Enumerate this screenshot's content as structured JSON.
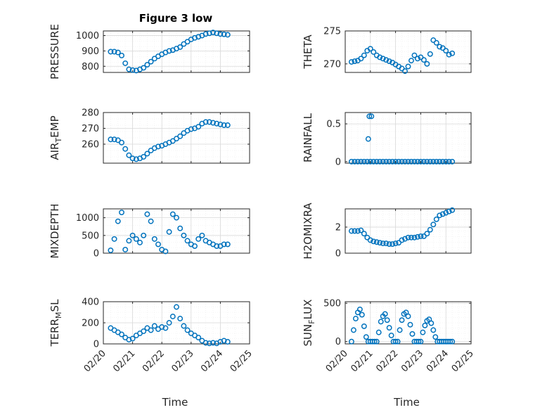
{
  "figure_title": "Figure 3 low",
  "marker_color": "#0072BD",
  "chart_data": [
    {
      "type": "scatter",
      "ylabel": "PRESSURE",
      "ylabel_sub": "",
      "xlim": [
        "02/20",
        "02/25"
      ],
      "ylim": [
        760,
        1030
      ],
      "yticks": [
        800,
        900,
        1000
      ],
      "xticks": [],
      "xlabel": "",
      "grid": true,
      "x": [
        "02/20 06:00",
        "02/20 09:00",
        "02/20 12:00",
        "02/20 15:00",
        "02/20 18:00",
        "02/20 21:00",
        "02/21 00:00",
        "02/21 03:00",
        "02/21 06:00",
        "02/21 09:00",
        "02/21 12:00",
        "02/21 15:00",
        "02/21 18:00",
        "02/21 21:00",
        "02/22 00:00",
        "02/22 03:00",
        "02/22 06:00",
        "02/22 09:00",
        "02/22 12:00",
        "02/22 15:00",
        "02/22 18:00",
        "02/22 21:00",
        "02/23 00:00",
        "02/23 03:00",
        "02/23 06:00",
        "02/23 09:00",
        "02/23 12:00",
        "02/23 15:00",
        "02/23 18:00",
        "02/23 21:00",
        "02/24 00:00",
        "02/24 03:00",
        "02/24 06:00"
      ],
      "y": [
        895,
        895,
        890,
        870,
        820,
        780,
        775,
        772,
        780,
        790,
        810,
        830,
        850,
        865,
        878,
        890,
        900,
        905,
        915,
        925,
        945,
        960,
        975,
        985,
        992,
        1000,
        1010,
        1015,
        1020,
        1015,
        1010,
        1008,
        1005
      ]
    },
    {
      "type": "scatter",
      "ylabel": "THETA",
      "ylabel_sub": "",
      "xlim": [
        "02/20",
        "02/25"
      ],
      "ylim": [
        268.7,
        275
      ],
      "yticks": [
        270,
        275
      ],
      "xticks": [],
      "xlabel": "",
      "grid": true,
      "x": [
        "02/20 06:00",
        "02/20 09:00",
        "02/20 12:00",
        "02/20 15:00",
        "02/20 18:00",
        "02/20 21:00",
        "02/21 00:00",
        "02/21 03:00",
        "02/21 06:00",
        "02/21 09:00",
        "02/21 12:00",
        "02/21 15:00",
        "02/21 18:00",
        "02/21 21:00",
        "02/22 00:00",
        "02/22 03:00",
        "02/22 06:00",
        "02/22 09:00",
        "02/22 12:00",
        "02/22 15:00",
        "02/22 18:00",
        "02/22 21:00",
        "02/23 00:00",
        "02/23 03:00",
        "02/23 06:00",
        "02/23 09:00",
        "02/23 12:00",
        "02/23 15:00",
        "02/23 18:00",
        "02/23 21:00",
        "02/24 00:00",
        "02/24 03:00",
        "02/24 06:00"
      ],
      "y": [
        270.3,
        270.4,
        270.5,
        270.8,
        271.3,
        272.0,
        272.3,
        271.8,
        271.3,
        271.0,
        270.8,
        270.6,
        270.4,
        270.2,
        269.9,
        269.6,
        269.3,
        268.9,
        269.6,
        270.5,
        271.3,
        270.8,
        271.0,
        270.6,
        270.0,
        271.5,
        273.6,
        273.2,
        272.6,
        272.4,
        272.0,
        271.4,
        271.6
      ]
    },
    {
      "type": "scatter",
      "ylabel": "AIR",
      "ylabel_sub": "T",
      "ylabel_rest": "EMP",
      "xlim": [
        "02/20",
        "02/25"
      ],
      "ylim": [
        248,
        280
      ],
      "yticks": [
        260,
        270,
        280
      ],
      "xticks": [],
      "xlabel": "",
      "grid": true,
      "x": [
        "02/20 06:00",
        "02/20 09:00",
        "02/20 12:00",
        "02/20 15:00",
        "02/20 18:00",
        "02/20 21:00",
        "02/21 00:00",
        "02/21 03:00",
        "02/21 06:00",
        "02/21 09:00",
        "02/21 12:00",
        "02/21 15:00",
        "02/21 18:00",
        "02/21 21:00",
        "02/22 00:00",
        "02/22 03:00",
        "02/22 06:00",
        "02/22 09:00",
        "02/22 12:00",
        "02/22 15:00",
        "02/22 18:00",
        "02/22 21:00",
        "02/23 00:00",
        "02/23 03:00",
        "02/23 06:00",
        "02/23 09:00",
        "02/23 12:00",
        "02/23 15:00",
        "02/23 18:00",
        "02/23 21:00",
        "02/24 00:00",
        "02/24 03:00",
        "02/24 06:00"
      ],
      "y": [
        263,
        263,
        262.5,
        261,
        257,
        253,
        251,
        250.5,
        251,
        252,
        254,
        256,
        257.5,
        258.5,
        259,
        260,
        261,
        262,
        263.5,
        265,
        267,
        268.5,
        269.5,
        270,
        271,
        273,
        274,
        274,
        273.5,
        273,
        272.5,
        272,
        272
      ]
    },
    {
      "type": "scatter",
      "ylabel": "RAINFALL",
      "ylabel_sub": "",
      "xlim": [
        "02/20",
        "02/25"
      ],
      "ylim": [
        -0.02,
        0.65
      ],
      "yticks": [
        0,
        0.5
      ],
      "ytick_labels": [
        "0",
        "0.5"
      ],
      "xticks": [],
      "xlabel": "",
      "grid": true,
      "x": [
        "02/20 06:00",
        "02/20 09:00",
        "02/20 12:00",
        "02/20 15:00",
        "02/20 18:00",
        "02/20 21:00",
        "02/21 00:00",
        "02/21 03:00",
        "02/21 06:00",
        "02/21 09:00",
        "02/21 12:00",
        "02/21 15:00",
        "02/21 18:00",
        "02/21 21:00",
        "02/22 00:00",
        "02/22 03:00",
        "02/22 06:00",
        "02/22 09:00",
        "02/22 12:00",
        "02/22 15:00",
        "02/22 18:00",
        "02/22 21:00",
        "02/23 00:00",
        "02/23 03:00",
        "02/23 06:00",
        "02/23 09:00",
        "02/23 12:00",
        "02/23 15:00",
        "02/23 18:00",
        "02/23 21:00",
        "02/24 00:00",
        "02/24 03:00",
        "02/24 06:00",
        "02/20 22:00",
        "02/20 23:00",
        "02/21 01:00"
      ],
      "y": [
        0,
        0,
        0,
        0,
        0,
        0,
        0,
        0,
        0,
        0,
        0,
        0,
        0,
        0,
        0,
        0,
        0,
        0,
        0,
        0,
        0,
        0,
        0,
        0,
        0,
        0,
        0,
        0,
        0,
        0,
        0,
        0,
        0,
        0.3,
        0.6,
        0.6
      ]
    },
    {
      "type": "scatter",
      "ylabel": "MIXDEPTH",
      "ylabel_sub": "",
      "xlim": [
        "02/20",
        "02/25"
      ],
      "ylim": [
        0,
        1250
      ],
      "yticks": [
        0,
        500,
        1000
      ],
      "xticks": [],
      "xlabel": "",
      "grid": true,
      "x": [
        "02/20 06:00",
        "02/20 09:00",
        "02/20 12:00",
        "02/20 15:00",
        "02/20 18:00",
        "02/20 21:00",
        "02/21 00:00",
        "02/21 03:00",
        "02/21 06:00",
        "02/21 09:00",
        "02/21 12:00",
        "02/21 15:00",
        "02/21 18:00",
        "02/21 21:00",
        "02/22 00:00",
        "02/22 03:00",
        "02/22 06:00",
        "02/22 09:00",
        "02/22 12:00",
        "02/22 15:00",
        "02/22 18:00",
        "02/22 21:00",
        "02/23 00:00",
        "02/23 03:00",
        "02/23 06:00",
        "02/23 09:00",
        "02/23 12:00",
        "02/23 15:00",
        "02/23 18:00",
        "02/23 21:00",
        "02/24 00:00",
        "02/24 03:00",
        "02/24 06:00"
      ],
      "y": [
        80,
        400,
        900,
        1150,
        100,
        350,
        500,
        400,
        300,
        500,
        1100,
        900,
        400,
        250,
        100,
        50,
        600,
        1100,
        1000,
        700,
        500,
        350,
        250,
        200,
        400,
        500,
        350,
        300,
        250,
        200,
        200,
        250,
        250
      ]
    },
    {
      "type": "scatter",
      "ylabel": "H2OMIXRA",
      "ylabel_sub": "",
      "xlim": [
        "02/20",
        "02/25"
      ],
      "ylim": [
        0,
        3.4
      ],
      "yticks": [
        0,
        2
      ],
      "xticks": [],
      "xlabel": "",
      "grid": true,
      "x": [
        "02/20 06:00",
        "02/20 09:00",
        "02/20 12:00",
        "02/20 15:00",
        "02/20 18:00",
        "02/20 21:00",
        "02/21 00:00",
        "02/21 03:00",
        "02/21 06:00",
        "02/21 09:00",
        "02/21 12:00",
        "02/21 15:00",
        "02/21 18:00",
        "02/21 21:00",
        "02/22 00:00",
        "02/22 03:00",
        "02/22 06:00",
        "02/22 09:00",
        "02/22 12:00",
        "02/22 15:00",
        "02/22 18:00",
        "02/22 21:00",
        "02/23 00:00",
        "02/23 03:00",
        "02/23 06:00",
        "02/23 09:00",
        "02/23 12:00",
        "02/23 15:00",
        "02/23 18:00",
        "02/23 21:00",
        "02/24 00:00",
        "02/24 03:00",
        "02/24 06:00"
      ],
      "y": [
        1.7,
        1.7,
        1.7,
        1.75,
        1.5,
        1.2,
        1.0,
        0.9,
        0.85,
        0.8,
        0.75,
        0.75,
        0.7,
        0.7,
        0.75,
        0.8,
        1.0,
        1.1,
        1.2,
        1.2,
        1.2,
        1.25,
        1.3,
        1.3,
        1.5,
        1.8,
        2.2,
        2.6,
        2.9,
        3.0,
        3.1,
        3.2,
        3.3
      ]
    },
    {
      "type": "scatter",
      "ylabel": "TERR",
      "ylabel_sub": "M",
      "ylabel_rest": "SL",
      "xlim": [
        "02/20",
        "02/25"
      ],
      "ylim": [
        0,
        400
      ],
      "yticks": [
        0,
        200,
        400
      ],
      "xticks": [
        "02/20",
        "02/21",
        "02/22",
        "02/23",
        "02/24",
        "02/25"
      ],
      "xlabel": "Time",
      "grid": true,
      "x": [
        "02/20 06:00",
        "02/20 09:00",
        "02/20 12:00",
        "02/20 15:00",
        "02/20 18:00",
        "02/20 21:00",
        "02/21 00:00",
        "02/21 03:00",
        "02/21 06:00",
        "02/21 09:00",
        "02/21 12:00",
        "02/21 15:00",
        "02/21 18:00",
        "02/21 21:00",
        "02/22 00:00",
        "02/22 03:00",
        "02/22 06:00",
        "02/22 09:00",
        "02/22 12:00",
        "02/22 15:00",
        "02/22 18:00",
        "02/22 21:00",
        "02/23 00:00",
        "02/23 03:00",
        "02/23 06:00",
        "02/23 09:00",
        "02/23 12:00",
        "02/23 15:00",
        "02/23 18:00",
        "02/23 21:00",
        "02/24 00:00",
        "02/24 03:00",
        "02/24 06:00"
      ],
      "y": [
        150,
        130,
        110,
        90,
        60,
        40,
        50,
        80,
        100,
        120,
        150,
        130,
        170,
        140,
        160,
        150,
        200,
        260,
        350,
        240,
        170,
        130,
        100,
        80,
        60,
        30,
        10,
        5,
        10,
        5,
        20,
        30,
        20
      ]
    },
    {
      "type": "scatter",
      "ylabel": "SUN",
      "ylabel_sub": "F",
      "ylabel_rest": "LUX",
      "xlim": [
        "02/20",
        "02/25"
      ],
      "ylim": [
        -30,
        520
      ],
      "yticks": [
        0,
        500
      ],
      "xticks": [
        "02/20",
        "02/21",
        "02/22",
        "02/23",
        "02/24",
        "02/25"
      ],
      "xlabel": "Time",
      "grid": true,
      "x": [
        "02/20 06:00",
        "02/20 08:00",
        "02/20 10:00",
        "02/20 12:00",
        "02/20 14:00",
        "02/20 16:00",
        "02/20 18:00",
        "02/20 20:00",
        "02/20 22:00",
        "02/21 00:00",
        "02/21 02:00",
        "02/21 04:00",
        "02/21 06:00",
        "02/21 08:00",
        "02/21 10:00",
        "02/21 12:00",
        "02/21 14:00",
        "02/21 16:00",
        "02/21 18:00",
        "02/21 20:00",
        "02/21 22:00",
        "02/22 00:00",
        "02/22 02:00",
        "02/22 04:00",
        "02/22 06:00",
        "02/22 08:00",
        "02/22 10:00",
        "02/22 12:00",
        "02/22 14:00",
        "02/22 16:00",
        "02/22 18:00",
        "02/22 20:00",
        "02/22 22:00",
        "02/23 00:00",
        "02/23 02:00",
        "02/23 04:00",
        "02/23 06:00",
        "02/23 08:00",
        "02/23 10:00",
        "02/23 12:00",
        "02/23 14:00",
        "02/23 16:00",
        "02/23 18:00",
        "02/23 20:00",
        "02/23 22:00",
        "02/24 00:00",
        "02/24 02:00",
        "02/24 04:00",
        "02/24 06:00"
      ],
      "y": [
        0,
        150,
        300,
        380,
        420,
        350,
        200,
        60,
        0,
        0,
        0,
        0,
        0,
        120,
        260,
        330,
        360,
        280,
        180,
        80,
        0,
        0,
        0,
        150,
        280,
        360,
        380,
        330,
        220,
        100,
        0,
        0,
        0,
        0,
        120,
        210,
        270,
        290,
        240,
        150,
        60,
        0,
        0,
        0,
        0,
        0,
        0,
        0,
        0
      ]
    }
  ]
}
